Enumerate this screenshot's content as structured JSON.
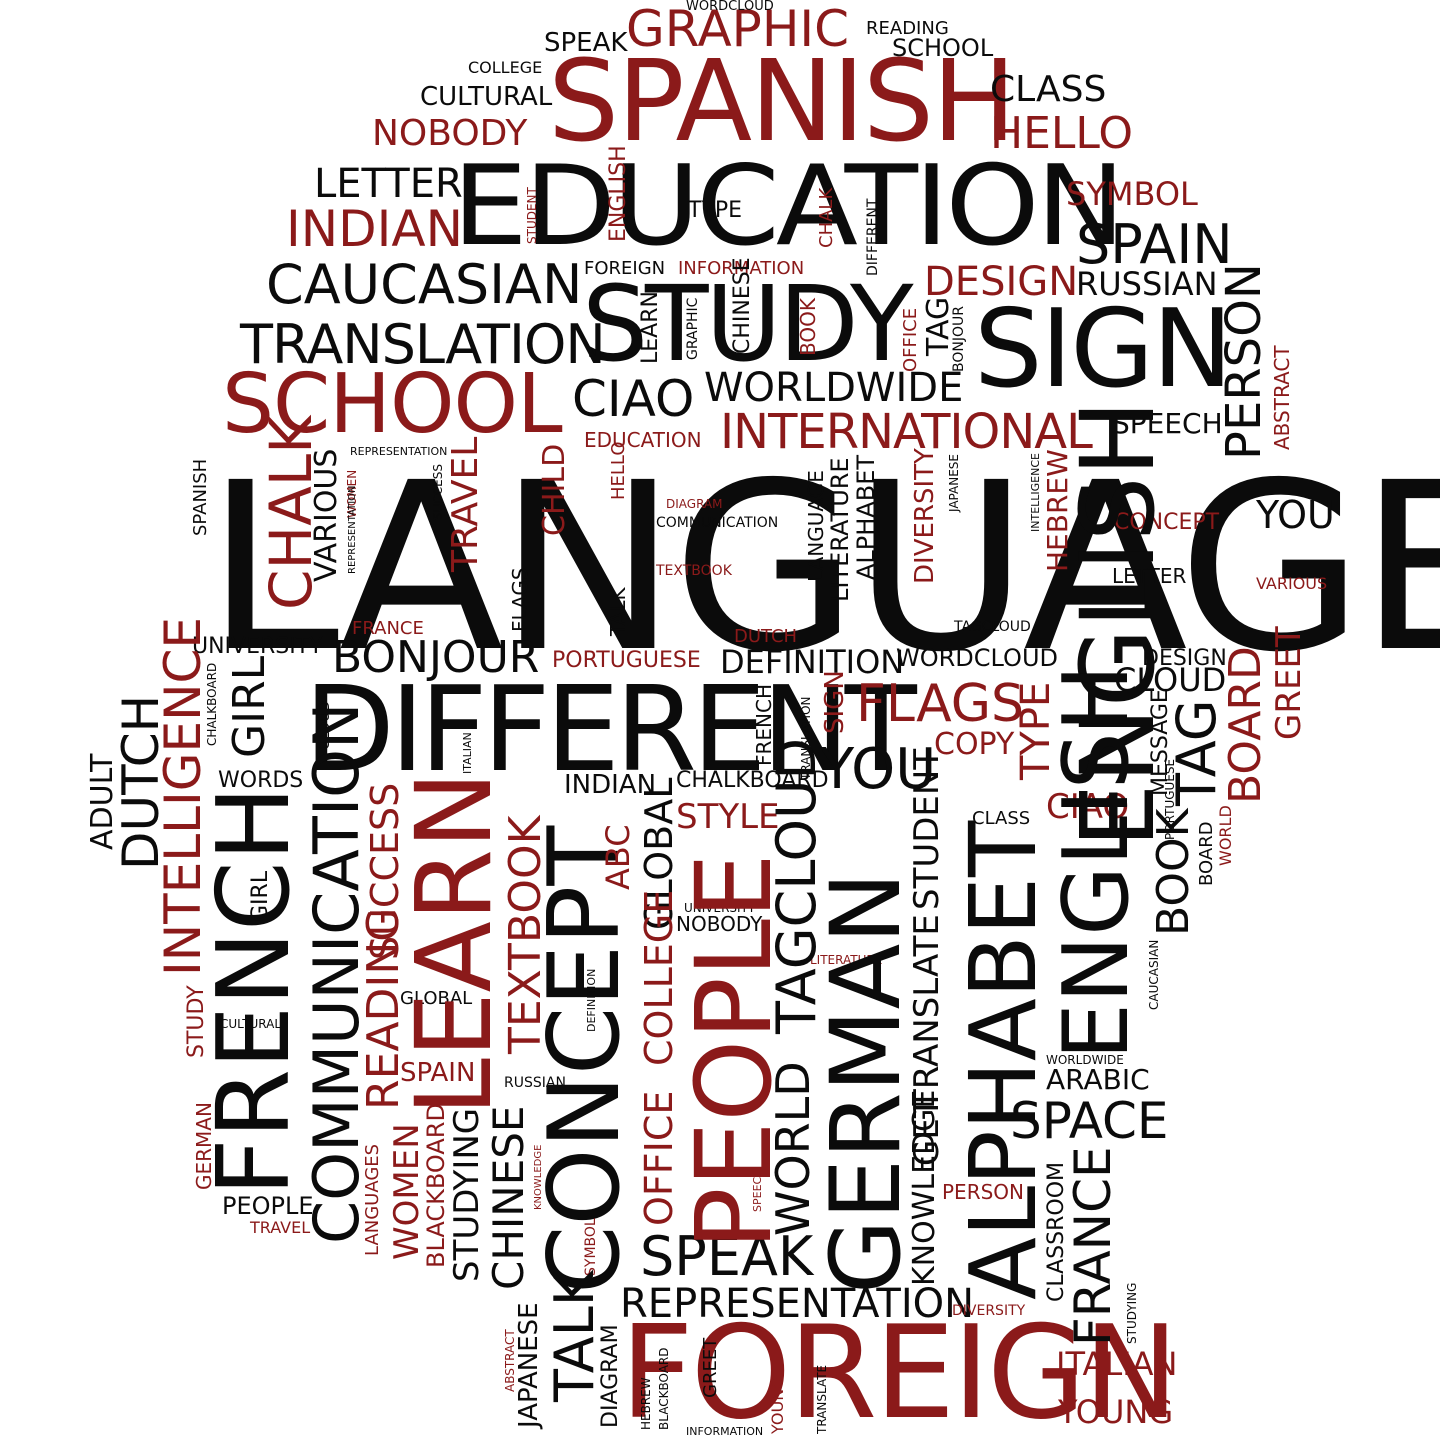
{
  "colors": {
    "primary": "#0b0b0b",
    "accent": "#8b1a1a",
    "background": "#ffffff"
  },
  "words": {
    "language": "LANGUAGE",
    "spanish": "SPANISH",
    "education": "EDUCATION",
    "study": "STUDY",
    "sign": "SIGN",
    "different": "DIFFERENT",
    "foreign": "FOREIGN",
    "school": "SCHOOL",
    "graphic": "GRAPHIC",
    "speak_top": "SPEAK",
    "wordcloud_top": "WORDCLOUD",
    "reading_top": "READING",
    "school_top": "SCHOOL",
    "college_top": "COLLEGE",
    "cultural_top": "CULTURAL",
    "nobody_top": "NOBODY",
    "class_top": "CLASS",
    "hello_top": "HELLO",
    "letter_top": "LETTER",
    "indian_top": "INDIAN",
    "symbol": "SYMBOL",
    "spain_top": "SPAIN",
    "russian_top": "RUSSIAN",
    "design_top": "DESIGN",
    "caucasian_top": "CAUCASIAN",
    "translation": "TRANSLATION",
    "foreign_small": "FOREIGN",
    "information_top": "INFORMATION",
    "type_top": "TYPE",
    "ciao_top": "CIAO",
    "worldwide_top": "WORLDWIDE",
    "international": "INTERNATIONAL",
    "education_small": "EDUCATION",
    "speech": "SPEECH",
    "representation_top": "REPRESENTATION",
    "bonjour": "BONJOUR",
    "portuguese": "PORTUGUESE",
    "definition": "DEFINITION",
    "wordcloud_mid": "WORDCLOUD",
    "design_mid": "DESIGN",
    "cloud": "CLOUD",
    "flags": "FLAGS",
    "copy": "COPY",
    "you_mid": "YOU",
    "you_right": "YOU",
    "concept_small": "CONCEPT",
    "letter_mid": "LETTER",
    "various_right": "VARIOUS",
    "tagcloud_mid": "TAGCLOUD",
    "university_top": "UNIVERSITY",
    "france_small": "FRANCE",
    "dutch_small": "DUTCH",
    "words": "WORDS",
    "indian_mid": "INDIAN",
    "chalkboard_mid": "CHALKBOARD",
    "style": "STYLE",
    "class_mid": "CLASS",
    "ciao_mid": "CIAO",
    "communication_small": "COMMUNICATION",
    "diagram_small": "DIAGRAM",
    "textbook_small": "TEXTBOOK",
    "university_small": "UNIVERSITY",
    "nobody_small": "NOBODY",
    "literature_small": "LITERATURE",
    "global_small": "GLOBAL",
    "cultural_small": "CULTURAL",
    "spain_mid": "SPAIN",
    "russian_small": "RUSSIAN",
    "worldwide_small": "WORLDWIDE",
    "arabic": "ARABIC",
    "space": "SPACE",
    "person_small": "PERSON",
    "people_small": "PEOPLE",
    "travel_small": "TRAVEL",
    "speak_bottom": "SPEAK",
    "representation_bottom": "REPRESENTATION",
    "diversity_small": "DIVERSITY",
    "italian": "ITALIAN",
    "young": "YOUNG",
    "information_small": "INFORMATION",
    "english_v": "ENGLISH",
    "student_v": "STUDENT",
    "chalk_v": "CHALK",
    "different_v": "DIFFERENT",
    "learn_v": "LEARN",
    "graphic_v": "GRAPHIC",
    "chinese_v": "CHINESE",
    "book_v": "BOOK",
    "office_v": "OFFICE",
    "tag_v": "TAG",
    "bonjour_v": "BONJOUR",
    "person_v": "PERSON",
    "abstract_v": "ABSTRACT",
    "spanish_v": "SPANISH",
    "chalk_big_v": "CHALK",
    "women_v": "WOMEN",
    "various_v": "VARIOUS",
    "representation_v": "REPRESENTATION",
    "success_v": "SUCCESS",
    "travel_v": "TRAVEL",
    "child_v": "CHILD",
    "hello_v": "HELLO",
    "language_v": "LANGUAGE",
    "literature_v": "LITERATURE",
    "alphabet_v": "ALPHABET",
    "diversity_v": "DIVERSITY",
    "japanese_v": "JAPANESE",
    "intelligence_v": "INTELLIGENCE",
    "hebrew_v": "HEBREW",
    "flags_v": "FLAGS",
    "talk_mid_v": "TALK",
    "girl_v": "GIRL",
    "chalkboard_v": "CHALKBOARD",
    "cloud_v": "CLOUD",
    "italian_v": "ITALIAN",
    "french_v": "FRENCH",
    "translation_v": "TRANSLATION",
    "sign_v": "SIGN",
    "type_v": "TYPE",
    "english_big_v": "ENGLISH",
    "board_v": "BOARD",
    "greet_v": "GREET",
    "message_v": "MESSAGE",
    "portuguese_v": "PORTUGUESE",
    "tag_big_v": "TAG",
    "book_big_v": "BOOK",
    "board_small_v": "BOARD",
    "world_small_v": "WORLD",
    "adult_v": "ADULT",
    "dutch_v": "DUTCH",
    "intelligence_big_v": "INTELLIGENCE",
    "french_big_v": "FRENCH",
    "girl_small_v": "GIRL",
    "communication_v": "COMMUNICATION",
    "success_big_v": "SUCCESS",
    "reading_v": "READING",
    "learn_big_v": "LEARN",
    "textbook_v": "TEXTBOOK",
    "concept_big_v": "CONCEPT",
    "abc_v": "ABC",
    "global_v": "GLOBAL",
    "college_v": "COLLEGE",
    "office_big_v": "OFFICE",
    "people_big_v": "PEOPLE",
    "tagcloud_v": "TAGCLOUD",
    "world_v": "WORLD",
    "german_big_v": "GERMAN",
    "student_big_v": "STUDENT",
    "translate_v": "TRANSLATE",
    "get_v": "GET",
    "knowledge_v": "KNOWLEDGE",
    "alphabet_big_v": "ALPHABET",
    "english_huge_v": "ENGLISH",
    "caucasian_v": "CAUCASIAN",
    "france_big_v": "FRANCE",
    "classroom_v": "CLASSROOM",
    "studying_right_v": "STUDYING",
    "study_v": "STUDY",
    "german_small_v": "GERMAN",
    "languages_v": "LANGUAGES",
    "women_big_v": "WOMEN",
    "blackboard_v": "BLACKBOARD",
    "studying_v": "STUDYING",
    "chinese_big_v": "CHINESE",
    "knowledge_small_v": "KNOWLEDGE",
    "definition_v": "DEFINITION",
    "symbol_v": "SYMBOL",
    "speech_v": "SPEECH",
    "talk_big_v": "TALK",
    "abstract_bottom_v": "ABSTRACT",
    "japanese_bottom_v": "JAPANESE",
    "diagram_bottom_v": "DIAGRAM",
    "hebrew_bottom_v": "HEBREW",
    "blackboard_bottom_v": "BLACKBOARD",
    "greet_bottom_v": "GREET",
    "young_bottom_v": "YOUNG",
    "translate_bottom_v": "TRANSLATE"
  }
}
